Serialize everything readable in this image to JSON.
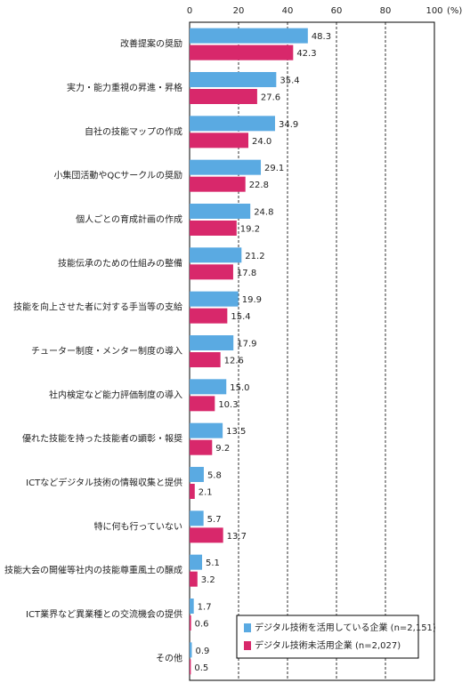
{
  "chart_data": {
    "type": "bar",
    "orientation": "horizontal",
    "categories": [
      "改善提案の奨励",
      "実力・能力重視の昇進・昇格",
      "自社の技能マップの作成",
      "小集団活動やQCサークルの奨励",
      "個人ごとの育成計画の作成",
      "技能伝承のための仕組みの整備",
      "技能を向上させた者に対する手当等の支給",
      "チューター制度・メンター制度の導入",
      "社内検定など能力評価制度の導入",
      "優れた技能を持った技能者の顕彰・報奨",
      "ICTなどデジタル技術の情報収集と提供",
      "特に何も行っていない",
      "技能大会の開催等社内の技能尊重風土の醸成",
      "ICT業界など異業種との交流機会の提供",
      "その他"
    ],
    "series": [
      {
        "name": "デジタル技術を活用している企業 (n=2,151)",
        "color": "#5aaae2",
        "values": [
          48.3,
          35.4,
          34.9,
          29.1,
          24.8,
          21.2,
          19.9,
          17.9,
          15.0,
          13.5,
          5.8,
          5.7,
          5.1,
          1.7,
          0.9
        ],
        "value_labels": [
          "48.3",
          "35.4",
          "34.9",
          "29.1",
          "24.8",
          "21.2",
          "19.9",
          "17.9",
          "15.0",
          "13.5",
          "5.8",
          "5.7",
          "5.1",
          "1.7",
          "0.9"
        ]
      },
      {
        "name": "デジタル技術未活用企業 (n=2,027)",
        "color": "#d8286b",
        "values": [
          42.3,
          27.6,
          24.0,
          22.8,
          19.2,
          17.8,
          15.4,
          12.6,
          10.3,
          9.2,
          2.1,
          13.7,
          3.2,
          0.6,
          0.5
        ],
        "value_labels": [
          "42.3",
          "27.6",
          "24.0",
          "22.8",
          "19.2",
          "17.8",
          "15.4",
          "12.6",
          "10.3",
          "9.2",
          "2.1",
          "13.7",
          "3.2",
          "0.6",
          "0.5"
        ]
      }
    ],
    "xlim": [
      0,
      100
    ],
    "xticks": [
      0,
      20,
      40,
      60,
      80,
      100
    ],
    "x_unit": "(%)",
    "grid": true,
    "legend": "lower right"
  }
}
